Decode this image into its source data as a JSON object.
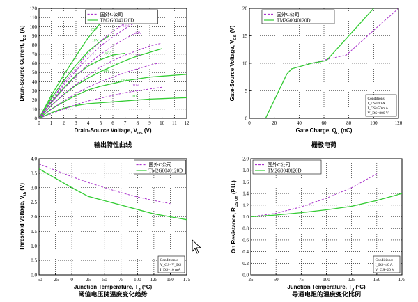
{
  "colors": {
    "green": "#33cc33",
    "purple": "#aa33cc",
    "grid": "#000000"
  },
  "chart_data": [
    {
      "id": "output",
      "type": "line",
      "caption": "输出特性曲线",
      "xlabel": "Drain-Source Voltage, V",
      "xlabel_sub": "DS",
      "xlabel_unit": " (V)",
      "ylabel": "Drain-Source Current, I",
      "ylabel_sub": "DS",
      "ylabel_unit": " (A)",
      "xlim": [
        0,
        12
      ],
      "ylim": [
        0,
        120
      ],
      "xticks": [
        0,
        1,
        2,
        3,
        4,
        5,
        6,
        7,
        8,
        9,
        10,
        11,
        12
      ],
      "yticks": [
        0,
        10,
        20,
        30,
        40,
        50,
        60,
        70,
        80,
        90,
        100,
        110,
        120
      ],
      "legend": [
        {
          "name": "国外C公司",
          "style": "dashed",
          "color": "purple"
        },
        {
          "name": "TM2G0040120D",
          "style": "solid",
          "color": "green"
        }
      ],
      "series": [
        {
          "name": "TM2G0040120D",
          "gate": "20V",
          "style": "solid",
          "color": "green",
          "points": [
            [
              0,
              0
            ],
            [
              1,
              25
            ],
            [
              2,
              47
            ],
            [
              3,
              68
            ],
            [
              4,
              88
            ],
            [
              5,
              104
            ],
            [
              5.9,
              112
            ]
          ]
        },
        {
          "name": "TM2G0040120D",
          "gate": "18V",
          "style": "solid",
          "color": "green",
          "points": [
            [
              0,
              0
            ],
            [
              1,
              22
            ],
            [
              2,
              41
            ],
            [
              3,
              58
            ],
            [
              4,
              73
            ],
            [
              5,
              84
            ],
            [
              5.7,
              90
            ]
          ]
        },
        {
          "name": "TM2G0040120D",
          "gate": "16V",
          "style": "solid",
          "color": "green",
          "points": [
            [
              0,
              0
            ],
            [
              1,
              18
            ],
            [
              2,
              33
            ],
            [
              3,
              47
            ],
            [
              4,
              57
            ],
            [
              5,
              64
            ],
            [
              6,
              69
            ],
            [
              7,
              71
            ]
          ]
        },
        {
          "name": "TM2G0040120D",
          "gate": "14V",
          "style": "solid",
          "color": "green",
          "points": [
            [
              0,
              0
            ],
            [
              1,
              14
            ],
            [
              2,
              26
            ],
            [
              3,
              36
            ],
            [
              4,
              44
            ],
            [
              5,
              51
            ],
            [
              6,
              57
            ],
            [
              7,
              63
            ],
            [
              8,
              68
            ],
            [
              9,
              72
            ],
            [
              10,
              76
            ]
          ]
        },
        {
          "name": "TM2G0040120D",
          "gate": "12V",
          "style": "solid",
          "color": "green",
          "points": [
            [
              0,
              0
            ],
            [
              1,
              10
            ],
            [
              2,
              18
            ],
            [
              3,
              25
            ],
            [
              4,
              31
            ],
            [
              5,
              35
            ],
            [
              6,
              38
            ],
            [
              7,
              41
            ],
            [
              8,
              43
            ],
            [
              9,
              45
            ],
            [
              10,
              46
            ],
            [
              11,
              47
            ],
            [
              12,
              48
            ]
          ]
        },
        {
          "name": "TM2G0040120D",
          "gate": "10V",
          "style": "solid",
          "color": "green",
          "points": [
            [
              0,
              0
            ],
            [
              1,
              6
            ],
            [
              2,
              11
            ],
            [
              3,
              14
            ],
            [
              4,
              16
            ],
            [
              5,
              17
            ],
            [
              6,
              18
            ],
            [
              7,
              19
            ],
            [
              8,
              20
            ],
            [
              9,
              21
            ],
            [
              10,
              21.5
            ],
            [
              11,
              22
            ],
            [
              12,
              22.5
            ]
          ]
        },
        {
          "name": "国外C公司",
          "gate": "20V",
          "style": "dashed",
          "color": "purple",
          "points": [
            [
              0,
              0
            ],
            [
              1,
              20
            ],
            [
              2,
              38
            ],
            [
              3,
              55
            ],
            [
              4,
              71
            ],
            [
              5,
              84
            ],
            [
              6,
              95
            ],
            [
              7,
              104
            ],
            [
              8,
              111
            ]
          ]
        },
        {
          "name": "国外C公司",
          "gate": "18V",
          "style": "dashed",
          "color": "purple",
          "points": [
            [
              0,
              0
            ],
            [
              1,
              19
            ],
            [
              2,
              36
            ],
            [
              3,
              52
            ],
            [
              4,
              66
            ],
            [
              5,
              79
            ],
            [
              6,
              89
            ],
            [
              7,
              98
            ],
            [
              8,
              106
            ]
          ]
        },
        {
          "name": "国外C公司",
          "gate": "16V",
          "style": "dashed",
          "color": "purple",
          "points": [
            [
              0,
              0
            ],
            [
              1,
              17
            ],
            [
              2,
              32
            ],
            [
              3,
              46
            ],
            [
              4,
              59
            ],
            [
              5,
              70
            ],
            [
              6,
              79
            ],
            [
              7,
              87
            ],
            [
              8,
              94
            ]
          ]
        },
        {
          "name": "国外C公司",
          "gate": "14V",
          "style": "dashed",
          "color": "purple",
          "points": [
            [
              0,
              0
            ],
            [
              1,
              14
            ],
            [
              2,
              26
            ],
            [
              3,
              37
            ],
            [
              4,
              47
            ],
            [
              5,
              56
            ],
            [
              6,
              63
            ],
            [
              7,
              69
            ],
            [
              8,
              74
            ],
            [
              9,
              79
            ],
            [
              10,
              82
            ]
          ]
        },
        {
          "name": "国外C公司",
          "gate": "12V",
          "style": "dashed",
          "color": "purple",
          "points": [
            [
              0,
              0
            ],
            [
              1,
              10
            ],
            [
              2,
              19
            ],
            [
              3,
              27
            ],
            [
              4,
              34
            ],
            [
              5,
              40
            ],
            [
              6,
              45
            ],
            [
              7,
              50
            ],
            [
              8,
              54
            ],
            [
              9,
              58
            ],
            [
              10,
              61
            ]
          ]
        },
        {
          "name": "国外C公司",
          "gate": "10V",
          "style": "dashed",
          "color": "purple",
          "points": [
            [
              0,
              0
            ],
            [
              1,
              5
            ],
            [
              2,
              10
            ],
            [
              3,
              15
            ],
            [
              4,
              19
            ],
            [
              5,
              22
            ],
            [
              6,
              25
            ],
            [
              7,
              28
            ],
            [
              8,
              30
            ],
            [
              9,
              32
            ],
            [
              10,
              34
            ]
          ]
        }
      ],
      "labels": [
        {
          "text": "20V",
          "x": 4.2,
          "y": 96,
          "color": "green"
        },
        {
          "text": "18V",
          "x": 4.3,
          "y": 84,
          "color": "green"
        },
        {
          "text": "16V",
          "x": 5.3,
          "y": 70,
          "color": "green"
        },
        {
          "text": "14V",
          "x": 5.2,
          "y": 51,
          "color": "green"
        },
        {
          "text": "12V",
          "x": 6.6,
          "y": 40,
          "color": "green"
        },
        {
          "text": "10V",
          "x": 7.5,
          "y": 23,
          "color": "green"
        },
        {
          "text": "20V",
          "x": 6.0,
          "y": 114,
          "color": "purple"
        },
        {
          "text": "18V",
          "x": 6.7,
          "y": 111,
          "color": "purple"
        },
        {
          "text": "16V",
          "x": 6.8,
          "y": 100,
          "color": "purple"
        },
        {
          "text": "14V",
          "x": 7.8,
          "y": 92,
          "color": "purple"
        },
        {
          "text": "12V",
          "x": 7.8,
          "y": 68,
          "color": "purple"
        },
        {
          "text": "10V",
          "x": 7.6,
          "y": 35,
          "color": "purple"
        }
      ]
    },
    {
      "id": "gate",
      "type": "line",
      "caption": "栅极电荷",
      "xlabel": "Gate Charge, Q",
      "xlabel_sub": "G",
      "xlabel_unit": " (nC)",
      "ylabel": "Gate-Source Voltage, V",
      "ylabel_sub": "GS",
      "ylabel_unit": " (V)",
      "xlim": [
        0,
        120
      ],
      "ylim": [
        0,
        20
      ],
      "xticks": [
        0,
        20,
        40,
        60,
        80,
        100,
        120
      ],
      "yticks": [
        0,
        5,
        10,
        15,
        20
      ],
      "legend": [
        {
          "name": "国外C公司",
          "style": "dashed",
          "color": "purple"
        },
        {
          "name": "TM2G0040120D",
          "style": "solid",
          "color": "green"
        }
      ],
      "series": [
        {
          "name": "国外C公司",
          "style": "dashed",
          "color": "purple",
          "points": [
            [
              13,
              0
            ],
            [
              30,
              8
            ],
            [
              34,
              9
            ],
            [
              50,
              10
            ],
            [
              62,
              10.7
            ],
            [
              78,
              11.5
            ],
            [
              100,
              16
            ],
            [
              120,
              20
            ]
          ]
        },
        {
          "name": "TM2G0040120D",
          "style": "solid",
          "color": "green",
          "points": [
            [
              13,
              0
            ],
            [
              30,
              8
            ],
            [
              34,
              9
            ],
            [
              50,
              10
            ],
            [
              62,
              10.5
            ],
            [
              100,
              20
            ]
          ]
        }
      ],
      "note": [
        "Conditions:",
        "I_DS=40 A",
        "I_GS=50 mA",
        "V_DS=800 V"
      ]
    },
    {
      "id": "threshold",
      "type": "line",
      "caption": "阈值电压随温度变化趋势",
      "xlabel": "Junction Temperature, T",
      "xlabel_sub": "J",
      "xlabel_unit": " (°C)",
      "ylabel": "Threshold Voltage, V",
      "ylabel_sub": "th",
      "ylabel_unit": " (V)",
      "xlim": [
        -50,
        175
      ],
      "ylim": [
        0,
        4
      ],
      "xticks": [
        -50,
        -25,
        0,
        25,
        50,
        75,
        100,
        125,
        150,
        175
      ],
      "yticks": [
        0,
        0.5,
        1.0,
        1.5,
        2.0,
        2.5,
        3.0,
        3.5,
        4.0
      ],
      "legend": [
        {
          "name": "国外C公司",
          "style": "dashed",
          "color": "purple"
        },
        {
          "name": "TM2G0040120D",
          "style": "solid",
          "color": "green"
        }
      ],
      "series": [
        {
          "name": "国外C公司",
          "style": "dashed",
          "color": "purple",
          "points": [
            [
              -50,
              3.82
            ],
            [
              0,
              3.38
            ],
            [
              25,
              3.18
            ],
            [
              50,
              3.0
            ],
            [
              75,
              2.83
            ],
            [
              100,
              2.68
            ],
            [
              125,
              2.56
            ],
            [
              150,
              2.45
            ]
          ]
        },
        {
          "name": "TM2G0040120D",
          "style": "solid",
          "color": "green",
          "points": [
            [
              -50,
              3.65
            ],
            [
              0,
              3.0
            ],
            [
              25,
              2.7
            ],
            [
              50,
              2.55
            ],
            [
              75,
              2.4
            ],
            [
              100,
              2.25
            ],
            [
              125,
              2.1
            ],
            [
              150,
              2.0
            ],
            [
              175,
              1.9
            ]
          ]
        }
      ],
      "note": [
        "Conditions:",
        "V_GS=V_DS",
        "I_DS=10 mA"
      ]
    },
    {
      "id": "onres",
      "type": "line",
      "caption": "导通电阻的温度变化比例",
      "xlabel": "Junction Temperature, T",
      "xlabel_sub": "J",
      "xlabel_unit": " (°C)",
      "ylabel": "On Resistance, R",
      "ylabel_sub": "DS On",
      "ylabel_unit": " (P.U.)",
      "xlim": [
        25,
        175
      ],
      "ylim": [
        0,
        2
      ],
      "xticks": [
        25,
        50,
        75,
        100,
        125,
        150,
        175
      ],
      "yticks": [
        0,
        0.2,
        0.4,
        0.6,
        0.8,
        1.0,
        1.2,
        1.4,
        1.6,
        1.8,
        2.0
      ],
      "legend": [
        {
          "name": "国外C公司",
          "style": "dashed",
          "color": "purple"
        },
        {
          "name": "TM2G0040120D",
          "style": "solid",
          "color": "green"
        }
      ],
      "series": [
        {
          "name": "国外C公司",
          "style": "dashed",
          "color": "purple",
          "points": [
            [
              25,
              1.0
            ],
            [
              50,
              1.06
            ],
            [
              75,
              1.17
            ],
            [
              100,
              1.32
            ],
            [
              125,
              1.5
            ],
            [
              150,
              1.74
            ]
          ]
        },
        {
          "name": "TM2G0040120D",
          "style": "solid",
          "color": "green",
          "points": [
            [
              25,
              1.0
            ],
            [
              50,
              1.03
            ],
            [
              75,
              1.07
            ],
            [
              100,
              1.12
            ],
            [
              125,
              1.18
            ],
            [
              150,
              1.28
            ],
            [
              175,
              1.4
            ]
          ]
        }
      ],
      "note": [
        "Conditions:",
        "I_DS=40 A",
        "V_GS=20 V"
      ]
    }
  ]
}
